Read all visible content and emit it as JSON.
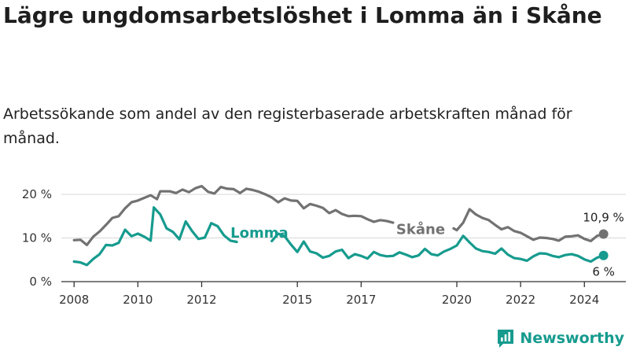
{
  "header": {
    "title": "Lägre ungdomsarbetslöshet i Lomma än i Skåne",
    "subtitle": "Arbetssökande som andel av den registerbaserade arbetskraften månad för månad."
  },
  "brand": {
    "name": "Newsworthy",
    "icon": "bar-chart-logo-icon"
  },
  "colors": {
    "skane": "#727272",
    "lomma": "#169b8e",
    "grid": "#d7d7d7",
    "axis": "#333333"
  },
  "chart_data": {
    "type": "line",
    "title": "Lägre ungdomsarbetslöshet i Lomma än i Skåne",
    "subtitle": "Arbetssökande som andel av den registerbaserade arbetskraften månad för månad.",
    "xlabel": "",
    "ylabel": "",
    "x_range": [
      2007.6,
      2025.3
    ],
    "ylim": [
      0,
      22
    ],
    "y_ticks": [
      0,
      10,
      20
    ],
    "y_tick_labels": [
      "0 %",
      "10 %",
      "20 %"
    ],
    "x_ticks": [
      2008,
      2010,
      2012,
      2015,
      2017,
      2020,
      2022,
      2024
    ],
    "x_tick_labels": [
      "2008",
      "2010",
      "2012",
      "2015",
      "2017",
      "2020",
      "2022",
      "2024"
    ],
    "grid": "horizontal",
    "series": [
      {
        "name": "Skåne",
        "label": "Skåne",
        "end_label": "10,9 %",
        "points": [
          [
            2008.0,
            9.5
          ],
          [
            2008.2,
            9.6
          ],
          [
            2008.4,
            8.4
          ],
          [
            2008.6,
            10.3
          ],
          [
            2008.8,
            11.5
          ],
          [
            2009.0,
            13.0
          ],
          [
            2009.2,
            14.6
          ],
          [
            2009.4,
            15.0
          ],
          [
            2009.6,
            16.8
          ],
          [
            2009.8,
            18.2
          ],
          [
            2010.0,
            18.6
          ],
          [
            2010.2,
            19.2
          ],
          [
            2010.4,
            19.8
          ],
          [
            2010.6,
            18.9
          ],
          [
            2010.7,
            20.7
          ],
          [
            2011.0,
            20.7
          ],
          [
            2011.2,
            20.3
          ],
          [
            2011.4,
            21.1
          ],
          [
            2011.6,
            20.5
          ],
          [
            2011.8,
            21.4
          ],
          [
            2012.0,
            21.9
          ],
          [
            2012.2,
            20.6
          ],
          [
            2012.4,
            20.2
          ],
          [
            2012.6,
            21.7
          ],
          [
            2012.8,
            21.3
          ],
          [
            2013.0,
            21.2
          ],
          [
            2013.2,
            20.3
          ],
          [
            2013.4,
            21.3
          ],
          [
            2013.6,
            21.0
          ],
          [
            2013.8,
            20.6
          ],
          [
            2014.0,
            20.0
          ],
          [
            2014.2,
            19.3
          ],
          [
            2014.4,
            18.2
          ],
          [
            2014.6,
            19.1
          ],
          [
            2014.8,
            18.6
          ],
          [
            2015.0,
            18.5
          ],
          [
            2015.2,
            16.8
          ],
          [
            2015.4,
            17.8
          ],
          [
            2015.6,
            17.4
          ],
          [
            2015.8,
            16.9
          ],
          [
            2016.0,
            15.7
          ],
          [
            2016.2,
            16.4
          ],
          [
            2016.4,
            15.5
          ],
          [
            2016.6,
            15.0
          ],
          [
            2016.8,
            15.1
          ],
          [
            2017.0,
            15.0
          ],
          [
            2017.2,
            14.3
          ],
          [
            2017.4,
            13.7
          ],
          [
            2017.6,
            14.1
          ],
          [
            2017.8,
            13.9
          ],
          [
            2018.0,
            13.5
          ]
        ]
      },
      {
        "name": "Skåne (2020–2025)",
        "label": "",
        "end_label": "",
        "points": [
          [
            2019.9,
            12.2
          ],
          [
            2020.0,
            11.8
          ],
          [
            2020.2,
            13.5
          ],
          [
            2020.4,
            16.6
          ],
          [
            2020.6,
            15.4
          ],
          [
            2020.8,
            14.6
          ],
          [
            2021.0,
            14.1
          ],
          [
            2021.2,
            13.0
          ],
          [
            2021.4,
            12.0
          ],
          [
            2021.6,
            12.5
          ],
          [
            2021.8,
            11.6
          ],
          [
            2022.0,
            11.2
          ],
          [
            2022.2,
            10.4
          ],
          [
            2022.4,
            9.6
          ],
          [
            2022.6,
            10.1
          ],
          [
            2022.8,
            10.0
          ],
          [
            2023.0,
            9.8
          ],
          [
            2023.2,
            9.4
          ],
          [
            2023.4,
            10.3
          ],
          [
            2023.6,
            10.4
          ],
          [
            2023.8,
            10.6
          ],
          [
            2024.0,
            9.8
          ],
          [
            2024.2,
            9.3
          ],
          [
            2024.4,
            10.5
          ],
          [
            2024.6,
            10.9
          ]
        ]
      },
      {
        "name": "Lomma",
        "label": "Lomma",
        "end_label": "",
        "points": [
          [
            2008.0,
            4.6
          ],
          [
            2008.2,
            4.4
          ],
          [
            2008.4,
            3.8
          ],
          [
            2008.6,
            5.2
          ],
          [
            2008.8,
            6.3
          ],
          [
            2009.0,
            8.4
          ],
          [
            2009.2,
            8.3
          ],
          [
            2009.4,
            8.9
          ],
          [
            2009.6,
            11.9
          ],
          [
            2009.8,
            10.4
          ],
          [
            2010.0,
            11.0
          ],
          [
            2010.2,
            10.3
          ],
          [
            2010.4,
            9.4
          ],
          [
            2010.5,
            17.0
          ],
          [
            2010.7,
            15.4
          ],
          [
            2010.9,
            12.2
          ],
          [
            2011.1,
            11.4
          ],
          [
            2011.3,
            9.7
          ],
          [
            2011.5,
            13.8
          ],
          [
            2011.7,
            11.6
          ],
          [
            2011.9,
            9.8
          ],
          [
            2012.1,
            10.1
          ],
          [
            2012.3,
            13.4
          ],
          [
            2012.5,
            12.7
          ],
          [
            2012.7,
            10.6
          ],
          [
            2012.9,
            9.4
          ],
          [
            2013.1,
            9.1
          ]
        ]
      },
      {
        "name": "Lomma (2014–2025)",
        "label": "",
        "end_label": "6 %",
        "points": [
          [
            2014.2,
            9.3
          ],
          [
            2014.4,
            11.0
          ],
          [
            2014.6,
            10.4
          ],
          [
            2014.8,
            8.5
          ],
          [
            2015.0,
            6.8
          ],
          [
            2015.2,
            9.2
          ],
          [
            2015.4,
            6.9
          ],
          [
            2015.6,
            6.5
          ],
          [
            2015.8,
            5.5
          ],
          [
            2016.0,
            5.9
          ],
          [
            2016.2,
            6.9
          ],
          [
            2016.4,
            7.3
          ],
          [
            2016.6,
            5.4
          ],
          [
            2016.8,
            6.3
          ],
          [
            2017.0,
            5.9
          ],
          [
            2017.2,
            5.3
          ],
          [
            2017.4,
            6.8
          ],
          [
            2017.6,
            6.1
          ],
          [
            2017.8,
            5.8
          ],
          [
            2018.0,
            5.9
          ],
          [
            2018.2,
            6.7
          ],
          [
            2018.4,
            6.2
          ],
          [
            2018.6,
            5.6
          ],
          [
            2018.8,
            6.0
          ],
          [
            2019.0,
            7.5
          ],
          [
            2019.2,
            6.3
          ],
          [
            2019.4,
            6.0
          ],
          [
            2019.6,
            6.9
          ],
          [
            2019.8,
            7.5
          ],
          [
            2020.0,
            8.3
          ],
          [
            2020.2,
            10.5
          ],
          [
            2020.4,
            9.0
          ],
          [
            2020.6,
            7.6
          ],
          [
            2020.8,
            7.0
          ],
          [
            2021.0,
            6.8
          ],
          [
            2021.2,
            6.4
          ],
          [
            2021.4,
            7.6
          ],
          [
            2021.6,
            6.2
          ],
          [
            2021.8,
            5.4
          ],
          [
            2022.0,
            5.2
          ],
          [
            2022.2,
            4.8
          ],
          [
            2022.4,
            5.8
          ],
          [
            2022.6,
            6.5
          ],
          [
            2022.8,
            6.4
          ],
          [
            2023.0,
            5.9
          ],
          [
            2023.2,
            5.6
          ],
          [
            2023.4,
            6.1
          ],
          [
            2023.6,
            6.3
          ],
          [
            2023.8,
            5.9
          ],
          [
            2024.0,
            5.1
          ],
          [
            2024.2,
            4.6
          ],
          [
            2024.4,
            5.5
          ],
          [
            2024.6,
            6.0
          ]
        ]
      }
    ]
  }
}
